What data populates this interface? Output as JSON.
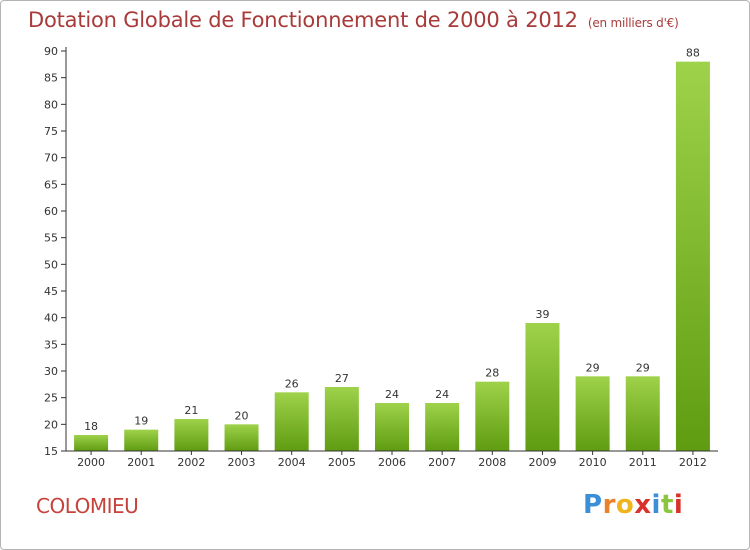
{
  "title": "Dotation Globale de Fonctionnement de 2000 à 2012",
  "unit_note": "(en milliers d'€)",
  "commune": "COLOMIEU",
  "brand": {
    "letters": [
      "P",
      "r",
      "o",
      "x",
      "i",
      "t",
      "i"
    ],
    "colors": [
      "#3a8fd8",
      "#e8832a",
      "#f0b41c",
      "#d8322a",
      "#3a8fd8",
      "#8cc63f",
      "#d8322a"
    ]
  },
  "colors": {
    "title": "#a93a3a",
    "bar_top": "#9ed24a",
    "bar_bottom": "#5f9c12",
    "axis": "#333333",
    "grid": "#e6e6e6"
  },
  "chart_data": {
    "type": "bar",
    "title": "Dotation Globale de Fonctionnement de 2000 à 2012",
    "xlabel": "",
    "ylabel": "",
    "categories": [
      "2000",
      "2001",
      "2002",
      "2003",
      "2004",
      "2005",
      "2006",
      "2007",
      "2008",
      "2009",
      "2010",
      "2011",
      "2012"
    ],
    "values": [
      18,
      19,
      21,
      20,
      26,
      27,
      24,
      24,
      28,
      39,
      29,
      29,
      88
    ],
    "ylim": [
      15,
      90
    ],
    "yticks": [
      15,
      20,
      25,
      30,
      35,
      40,
      45,
      50,
      55,
      60,
      65,
      70,
      75,
      80,
      85,
      90
    ],
    "grid": false,
    "data_labels": true
  }
}
